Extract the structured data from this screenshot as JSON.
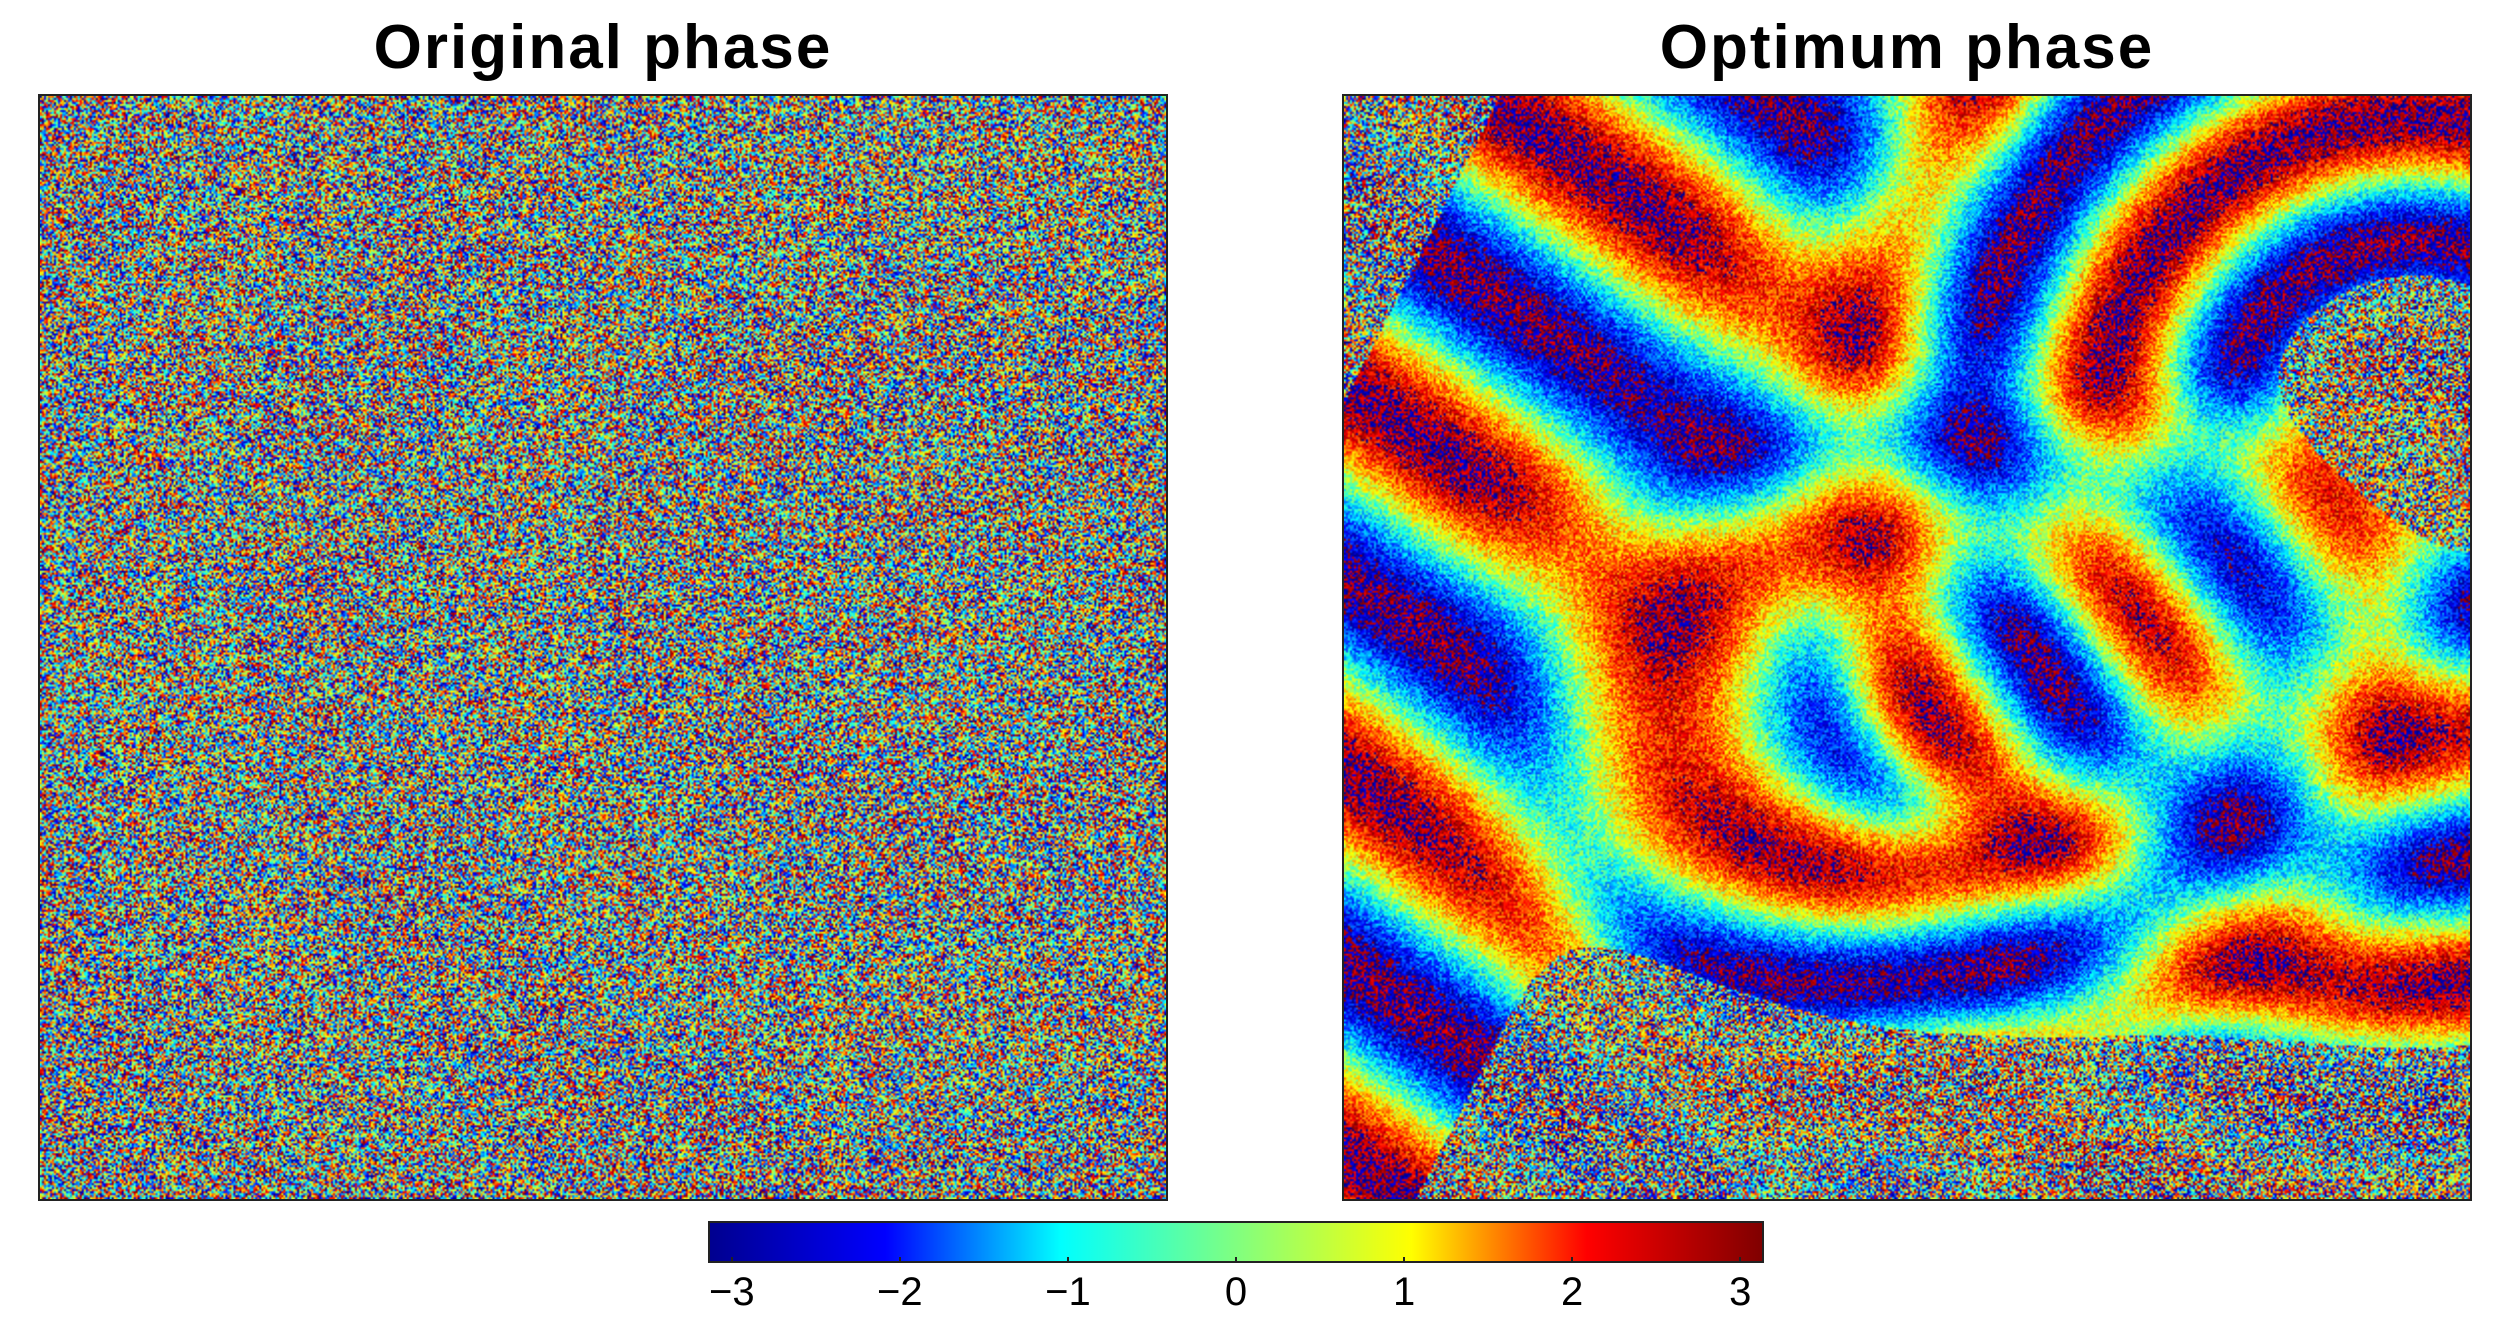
{
  "panels": {
    "left": {
      "title": "Original phase"
    },
    "right": {
      "title": "Optimum phase"
    }
  },
  "colorbar": {
    "colormap": "jet",
    "min": -3.14159,
    "max": 3.14159,
    "ticks": [
      "−3",
      "−2",
      "−1",
      "0",
      "1",
      "2",
      "3"
    ],
    "tick_values": [
      -3,
      -2,
      -1,
      0,
      1,
      2,
      3
    ],
    "stops": [
      "#00008f",
      "#0000ff",
      "#00ffff",
      "#80ff80",
      "#ffff00",
      "#ff0000",
      "#800000"
    ]
  }
}
